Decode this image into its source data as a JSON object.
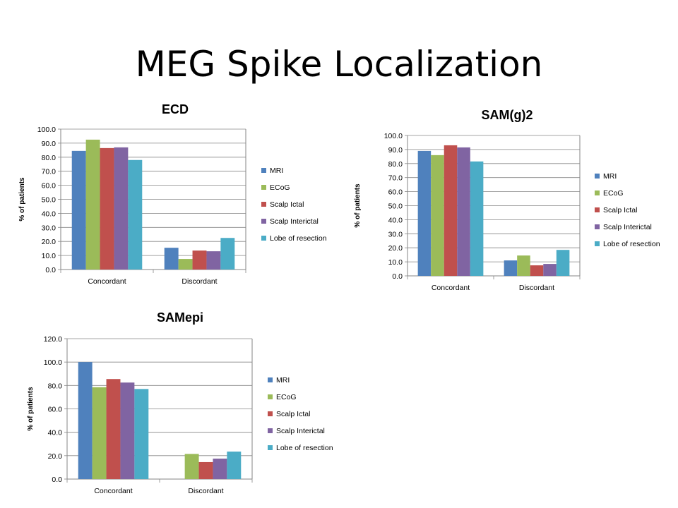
{
  "slide": {
    "title": "MEG Spike Localization"
  },
  "colors": {
    "MRI": "#4F81BD",
    "ECoG": "#9BBB59",
    "Scalp Ictal": "#C0504D",
    "Scalp Interictal": "#8064A2",
    "Lobe of resection": "#4BACC6",
    "axis": "#868686",
    "grid": "#868686"
  },
  "chart_data": [
    {
      "id": "ecd",
      "type": "bar",
      "title": "ECD",
      "xlabel": "",
      "ylabel": "% of patients",
      "ylim": [
        0,
        100
      ],
      "ytick_step": 10,
      "tick_decimals": 1,
      "categories": [
        "Concordant",
        "Discordant"
      ],
      "series": [
        {
          "name": "MRI",
          "values": [
            84.5,
            15.5
          ]
        },
        {
          "name": "ECoG",
          "values": [
            92.5,
            7.5
          ]
        },
        {
          "name": "Scalp Ictal",
          "values": [
            86.5,
            13.5
          ]
        },
        {
          "name": "Scalp Interictal",
          "values": [
            87.0,
            13.0
          ]
        },
        {
          "name": "Lobe of resection",
          "values": [
            78.0,
            22.5
          ]
        }
      ],
      "legend": "right",
      "grid": true
    },
    {
      "id": "samg2",
      "type": "bar",
      "title": "SAM(g)2",
      "xlabel": "",
      "ylabel": "% of patients",
      "ylim": [
        0,
        100
      ],
      "ytick_step": 10,
      "tick_decimals": 1,
      "categories": [
        "Concordant",
        "Discordant"
      ],
      "series": [
        {
          "name": "MRI",
          "values": [
            89.0,
            11.0
          ]
        },
        {
          "name": "ECoG",
          "values": [
            86.0,
            14.5
          ]
        },
        {
          "name": "Scalp Ictal",
          "values": [
            93.0,
            7.5
          ]
        },
        {
          "name": "Scalp Interictal",
          "values": [
            91.5,
            8.5
          ]
        },
        {
          "name": "Lobe of resection",
          "values": [
            81.5,
            18.5
          ]
        }
      ],
      "legend": "right",
      "grid": true
    },
    {
      "id": "samepi",
      "type": "bar",
      "title": "SAMepi",
      "xlabel": "",
      "ylabel": "% of patients",
      "ylim": [
        0,
        120
      ],
      "ytick_step": 20,
      "tick_decimals": 1,
      "categories": [
        "Concordant",
        "Discordant"
      ],
      "series": [
        {
          "name": "MRI",
          "values": [
            100.0,
            0.0
          ]
        },
        {
          "name": "ECoG",
          "values": [
            78.5,
            21.5
          ]
        },
        {
          "name": "Scalp Ictal",
          "values": [
            85.5,
            14.5
          ]
        },
        {
          "name": "Scalp Interictal",
          "values": [
            82.5,
            17.5
          ]
        },
        {
          "name": "Lobe of resection",
          "values": [
            77.0,
            23.5
          ]
        }
      ],
      "legend": "right",
      "grid": true
    }
  ]
}
